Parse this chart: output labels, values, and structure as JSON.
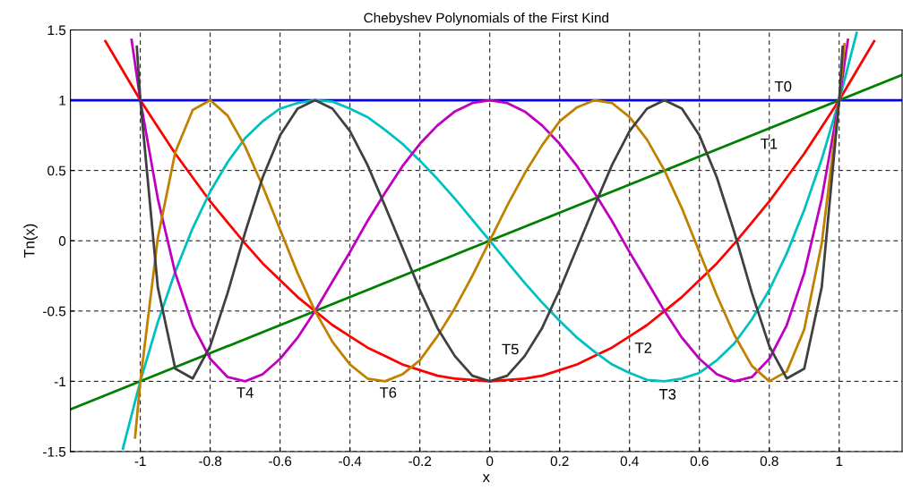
{
  "chart_data": {
    "type": "line",
    "title": "Chebyshev Polynomials of the First Kind",
    "xlabel": "x",
    "ylabel": "Tn(x)",
    "xlim": [
      -1.2,
      1.18
    ],
    "xticks": [
      -1,
      -0.8,
      -0.6,
      -0.4,
      -0.2,
      0,
      0.2,
      0.4,
      0.6,
      0.8,
      1
    ],
    "ylim": [
      -1.5,
      1.5
    ],
    "yticks": [
      -1.5,
      -1,
      -0.5,
      0,
      0.5,
      1,
      1.5
    ],
    "grid": true,
    "line_style": "solid",
    "marker": "none",
    "annotations": [
      "T0",
      "T1",
      "T2",
      "T3",
      "T4",
      "T5",
      "T6"
    ],
    "series": [
      {
        "color": "#0000ff",
        "x": [
          -1.2,
          1.18
        ],
        "values": [
          1,
          1
        ]
      },
      {
        "color": "#008000",
        "x": [
          -1.2,
          1.18
        ],
        "values": [
          -1.2,
          1.18
        ]
      },
      {
        "color": "#ff0000",
        "x": [
          -1.1,
          -1.05,
          -1,
          -0.95,
          -0.9,
          -0.85,
          -0.8,
          -0.75,
          -0.7,
          -0.65,
          -0.6,
          -0.55,
          -0.5,
          -0.45,
          -0.4,
          -0.35,
          -0.3,
          -0.25,
          -0.2,
          -0.15,
          -0.1,
          -0.05,
          0,
          0.05,
          0.1,
          0.15,
          0.2,
          0.25,
          0.3,
          0.35,
          0.4,
          0.45,
          0.5,
          0.55,
          0.6,
          0.65,
          0.7,
          0.75,
          0.8,
          0.85,
          0.9,
          0.95,
          1,
          1.05,
          1.1
        ],
        "values": [
          1.42,
          1.21,
          1,
          0.81,
          0.62,
          0.45,
          0.28,
          0.13,
          -0.02,
          -0.16,
          -0.28,
          -0.4,
          -0.5,
          -0.6,
          -0.68,
          -0.76,
          -0.82,
          -0.88,
          -0.92,
          -0.96,
          -0.98,
          -0.99,
          -1,
          -0.99,
          -0.98,
          -0.96,
          -0.92,
          -0.88,
          -0.82,
          -0.76,
          -0.68,
          -0.6,
          -0.5,
          -0.4,
          -0.28,
          -0.16,
          -0.02,
          0.13,
          0.28,
          0.45,
          0.62,
          0.81,
          1,
          1.21,
          1.42
        ]
      },
      {
        "color": "#00c0c0",
        "x": [
          -1.05,
          -1,
          -0.95,
          -0.9,
          -0.85,
          -0.8,
          -0.75,
          -0.7,
          -0.65,
          -0.6,
          -0.55,
          -0.5,
          -0.45,
          -0.4,
          -0.35,
          -0.3,
          -0.25,
          -0.2,
          -0.15,
          -0.1,
          -0.05,
          0,
          0.05,
          0.1,
          0.15,
          0.2,
          0.25,
          0.3,
          0.35,
          0.4,
          0.45,
          0.5,
          0.55,
          0.6,
          0.65,
          0.7,
          0.75,
          0.8,
          0.85,
          0.9,
          0.95,
          1,
          1.05
        ],
        "values": [
          -1.48,
          -1,
          -0.58,
          -0.22,
          0.09,
          0.35,
          0.56,
          0.73,
          0.85,
          0.94,
          0.98,
          1,
          0.99,
          0.94,
          0.88,
          0.79,
          0.69,
          0.57,
          0.44,
          0.3,
          0.15,
          0,
          -0.15,
          -0.3,
          -0.44,
          -0.57,
          -0.69,
          -0.79,
          -0.88,
          -0.94,
          -0.99,
          -1,
          -0.98,
          -0.94,
          -0.85,
          -0.73,
          -0.56,
          -0.35,
          -0.09,
          0.22,
          0.58,
          1,
          1.48
        ]
      },
      {
        "color": "#c000c0",
        "x": [
          -1.025,
          -1,
          -0.95,
          -0.9,
          -0.85,
          -0.8,
          -0.75,
          -0.7,
          -0.65,
          -0.6,
          -0.55,
          -0.5,
          -0.45,
          -0.4,
          -0.35,
          -0.3,
          -0.25,
          -0.2,
          -0.15,
          -0.1,
          -0.05,
          0,
          0.05,
          0.1,
          0.15,
          0.2,
          0.25,
          0.3,
          0.35,
          0.4,
          0.45,
          0.5,
          0.55,
          0.6,
          0.65,
          0.7,
          0.75,
          0.8,
          0.85,
          0.9,
          0.95,
          1,
          1.025
        ],
        "values": [
          1.43,
          1,
          0.3,
          -0.23,
          -0.6,
          -0.84,
          -0.97,
          -1,
          -0.95,
          -0.84,
          -0.69,
          -0.5,
          -0.29,
          -0.08,
          0.14,
          0.34,
          0.53,
          0.69,
          0.82,
          0.92,
          0.98,
          1,
          0.98,
          0.92,
          0.82,
          0.69,
          0.53,
          0.34,
          0.14,
          -0.08,
          -0.29,
          -0.5,
          -0.69,
          -0.84,
          -0.95,
          -1,
          -0.97,
          -0.84,
          -0.6,
          -0.23,
          0.3,
          1,
          1.43
        ]
      },
      {
        "color": "#c08000",
        "x": [
          -1.015,
          -1,
          -0.95,
          -0.9,
          -0.85,
          -0.8,
          -0.75,
          -0.7,
          -0.65,
          -0.6,
          -0.55,
          -0.5,
          -0.45,
          -0.4,
          -0.35,
          -0.3,
          -0.25,
          -0.2,
          -0.15,
          -0.1,
          -0.05,
          0,
          0.05,
          0.1,
          0.15,
          0.2,
          0.25,
          0.3,
          0.35,
          0.4,
          0.45,
          0.5,
          0.55,
          0.6,
          0.65,
          0.7,
          0.75,
          0.8,
          0.85,
          0.9,
          0.95,
          1,
          1.015
        ],
        "values": [
          -1.4,
          -1,
          0.02,
          0.63,
          0.93,
          1,
          0.89,
          0.67,
          0.39,
          0.08,
          -0.23,
          -0.5,
          -0.72,
          -0.88,
          -0.98,
          -1,
          -0.95,
          -0.85,
          -0.68,
          -0.48,
          -0.25,
          0,
          0.25,
          0.48,
          0.68,
          0.85,
          0.95,
          1,
          0.98,
          0.88,
          0.72,
          0.5,
          0.23,
          -0.08,
          -0.39,
          -0.67,
          -0.89,
          -1,
          -0.93,
          -0.63,
          -0.02,
          1,
          1.4
        ]
      },
      {
        "color": "#404040",
        "x": [
          -1.01,
          -1,
          -0.95,
          -0.9,
          -0.85,
          -0.8,
          -0.75,
          -0.7,
          -0.65,
          -0.6,
          -0.55,
          -0.5,
          -0.45,
          -0.4,
          -0.35,
          -0.3,
          -0.25,
          -0.2,
          -0.15,
          -0.1,
          -0.05,
          0,
          0.05,
          0.1,
          0.15,
          0.2,
          0.25,
          0.3,
          0.35,
          0.4,
          0.45,
          0.5,
          0.55,
          0.6,
          0.65,
          0.7,
          0.75,
          0.8,
          0.85,
          0.9,
          0.95,
          1,
          1.01
        ],
        "values": [
          1.38,
          1,
          -0.33,
          -0.91,
          -0.98,
          -0.75,
          -0.37,
          0.06,
          0.45,
          0.75,
          0.94,
          1,
          0.94,
          0.78,
          0.54,
          0.25,
          -0.05,
          -0.35,
          -0.62,
          -0.82,
          -0.96,
          -1,
          -0.96,
          -0.82,
          -0.62,
          -0.35,
          -0.05,
          0.25,
          0.54,
          0.78,
          0.94,
          1,
          0.94,
          0.75,
          0.45,
          0.06,
          -0.37,
          -0.75,
          -0.98,
          -0.91,
          -0.33,
          1,
          1.38
        ]
      }
    ]
  }
}
